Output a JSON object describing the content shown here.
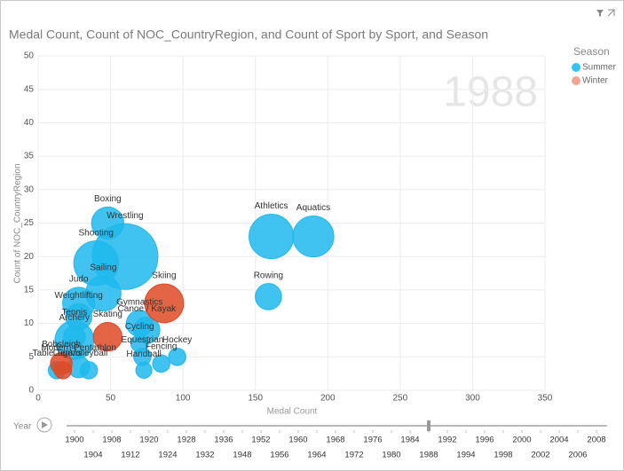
{
  "chart_data": {
    "type": "bubble",
    "title": "Medal Count, Count of NOC_CountryRegion, and Count of Sport by Sport, and Season",
    "x_label": "Medal Count",
    "y_label": "Count of NOC_CountryRegion",
    "xlim": [
      0,
      350
    ],
    "xticks": [
      0,
      50,
      100,
      150,
      200,
      250,
      300,
      350
    ],
    "ylim": [
      0,
      50
    ],
    "yticks": [
      0,
      5,
      10,
      15,
      20,
      25,
      30,
      35,
      40,
      45,
      50
    ],
    "grid": true,
    "legend": {
      "title": "Season",
      "position": "right"
    },
    "series": [
      {
        "name": "Summer",
        "color": "#1fb8ed",
        "legend_color": "#33c3f0",
        "labels": [
          "Boxing",
          "Wrestling",
          "Shooting",
          "Sailing",
          "Judo",
          "Weightlifting",
          "Tennis",
          "Archery",
          "Gymnastics",
          "Canoe / Kayak",
          "Cycling",
          "Equestrian",
          "Fencing",
          "Hockey",
          "Modern Pentathlon",
          "Volleyball",
          "Handball",
          "Table Tennis",
          "Rowing",
          "Athletics",
          "Aquatics"
        ],
        "x": [
          48,
          60,
          40,
          45,
          28,
          28,
          25,
          25,
          70,
          75,
          70,
          72,
          85,
          96,
          28,
          35,
          73,
          13,
          159,
          161,
          190
        ],
        "values": [
          25,
          20,
          19,
          14.5,
          13,
          11,
          7.5,
          8,
          10,
          9,
          7,
          5,
          4,
          5,
          3.5,
          3,
          3,
          3,
          14,
          23,
          23
        ],
        "sizes": [
          24,
          100,
          46,
          29,
          24,
          16,
          35,
          11,
          16,
          16,
          7,
          7,
          7,
          7,
          11,
          7,
          6,
          7,
          16,
          46,
          39
        ]
      },
      {
        "name": "Winter",
        "color": "#df4a26",
        "legend_color": "#f4a58f",
        "labels": [
          "Skating",
          "Skiing",
          "Bobsleigh",
          "Luge"
        ],
        "x": [
          48,
          87,
          16,
          17
        ],
        "values": [
          8,
          13,
          4,
          3
        ],
        "sizes": [
          19,
          35,
          11,
          7
        ]
      }
    ],
    "play_axis": {
      "label": "Year",
      "current": 1988,
      "years": [
        1900,
        1904,
        1908,
        1912,
        1920,
        1924,
        1928,
        1932,
        1936,
        1948,
        1952,
        1956,
        1960,
        1964,
        1968,
        1972,
        1976,
        1980,
        1984,
        1988,
        1992,
        1994,
        1996,
        1998,
        2000,
        2002,
        2004,
        2006,
        2008
      ]
    }
  }
}
